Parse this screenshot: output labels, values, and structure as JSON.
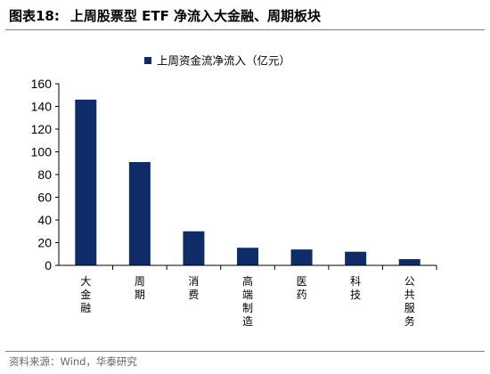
{
  "header": {
    "figure_number": "图表18:",
    "title_text": "上周股票型 ETF 净流入大金融、周期板块"
  },
  "footer": {
    "source": "资料来源：Wind，华泰研究"
  },
  "colors": {
    "bar": "#0f2c69",
    "axis": "#000000",
    "rule": "#7f7f7f"
  },
  "chart_data": {
    "type": "bar",
    "title": "",
    "xlabel": "",
    "ylabel": "",
    "ylim": [
      0,
      160
    ],
    "yticks": [
      0,
      20,
      40,
      60,
      80,
      100,
      120,
      140,
      160
    ],
    "grid": false,
    "legend_placement": "top-center",
    "categories": [
      "大金融",
      "周期",
      "消费",
      "高端制造",
      "医药",
      "科技",
      "公共服务"
    ],
    "series": [
      {
        "name": "上周资金流净流入（亿元）",
        "values": [
          146,
          91,
          30,
          15.5,
          14,
          12,
          5.5
        ]
      }
    ]
  }
}
